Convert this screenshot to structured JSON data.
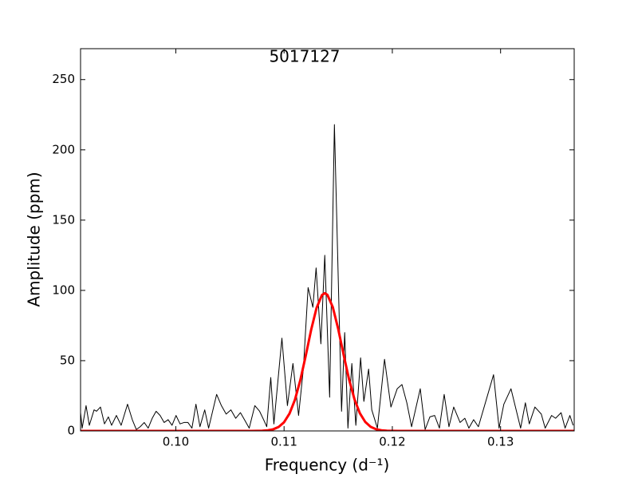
{
  "chart_data": {
    "type": "line",
    "title": "5017127",
    "x_label": "Frequency (d⁻¹)",
    "y_label": "Amplitude (ppm)",
    "xlim": [
      0.0912,
      0.1368
    ],
    "ylim": [
      0,
      272
    ],
    "xticks": [
      {
        "value": 0.1,
        "label": "0.10"
      },
      {
        "value": 0.11,
        "label": "0.11"
      },
      {
        "value": 0.12,
        "label": "0.12"
      },
      {
        "value": 0.13,
        "label": "0.13"
      }
    ],
    "yticks": [
      0,
      50,
      100,
      150,
      200,
      250
    ],
    "grid": false,
    "series": [
      {
        "color": "#000000",
        "x": [
          0.0912,
          0.09135,
          0.09171,
          0.09201,
          0.09245,
          0.09267,
          0.09304,
          0.09341,
          0.09377,
          0.09407,
          0.09451,
          0.09495,
          0.09554,
          0.09598,
          0.09635,
          0.09671,
          0.09708,
          0.09745,
          0.09782,
          0.09818,
          0.09855,
          0.09892,
          0.09929,
          0.09965,
          0.10002,
          0.10039,
          0.10076,
          0.10112,
          0.10149,
          0.10186,
          0.10223,
          0.10267,
          0.10303,
          0.10377,
          0.10421,
          0.10465,
          0.10509,
          0.10553,
          0.10597,
          0.10634,
          0.10678,
          0.1073,
          0.10774,
          0.10811,
          0.1084,
          0.10877,
          0.10906,
          0.1098,
          0.11031,
          0.11082,
          0.11134,
          0.11178,
          0.11222,
          0.11266,
          0.11296,
          0.1134,
          0.11376,
          0.11421,
          0.11465,
          0.11531,
          0.1156,
          0.1159,
          0.11626,
          0.11663,
          0.11707,
          0.11737,
          0.11781,
          0.1181,
          0.11862,
          0.11928,
          0.11987,
          0.12045,
          0.12089,
          0.12134,
          0.12178,
          0.12258,
          0.12303,
          0.12347,
          0.12391,
          0.12435,
          0.12479,
          0.12523,
          0.12567,
          0.12626,
          0.1267,
          0.12707,
          0.12751,
          0.12795,
          0.12935,
          0.12986,
          0.1303,
          0.13096,
          0.13185,
          0.13229,
          0.13265,
          0.13317,
          0.13376,
          0.13412,
          0.13471,
          0.13508,
          0.13559,
          0.13596,
          0.1364,
          0.1367
        ],
        "values": [
          13,
          2,
          18,
          4,
          15,
          14,
          17,
          5,
          10,
          4,
          11,
          4,
          19,
          8,
          1,
          3,
          6,
          2,
          9,
          14,
          11,
          6,
          8,
          4,
          11,
          5,
          6,
          6,
          2,
          19,
          3,
          15,
          2,
          26,
          18,
          12,
          15,
          9,
          13,
          8,
          2,
          18,
          14,
          8,
          3,
          38,
          5,
          66,
          18,
          48,
          11,
          44,
          102,
          88,
          116,
          62,
          125,
          24,
          218,
          14,
          70,
          2,
          48,
          4,
          52,
          21,
          44,
          15,
          2,
          51,
          17,
          30,
          33,
          20,
          3,
          30,
          1,
          10,
          11,
          2,
          26,
          3,
          17,
          6,
          9,
          2,
          8,
          3,
          40,
          2,
          19,
          30,
          2,
          20,
          5,
          17,
          12,
          2,
          11,
          9,
          13,
          2,
          11,
          4
        ]
      },
      {
        "color": "#ff0000",
        "linewidth": 3,
        "x": [
          0.0912,
          0.106,
          0.1065,
          0.107,
          0.1075,
          0.108,
          0.1085,
          0.109,
          0.1095,
          0.11,
          0.1105,
          0.111,
          0.1115,
          0.112,
          0.1125,
          0.113,
          0.1135,
          0.11376,
          0.114,
          0.1145,
          0.115,
          0.1155,
          0.116,
          0.1165,
          0.117,
          0.1175,
          0.118,
          0.1185,
          0.119,
          0.1195,
          0.12,
          0.1205,
          0.121,
          0.1368
        ],
        "values": [
          0,
          0,
          0,
          0.01,
          0.05,
          0.15,
          0.44,
          1.17,
          2.83,
          6.2,
          12.3,
          22.1,
          36.1,
          53.5,
          71.9,
          87.5,
          96.7,
          98,
          96.9,
          88.1,
          72.6,
          54.2,
          36.8,
          22.6,
          12.6,
          6.4,
          2.9,
          1.2,
          0.46,
          0.16,
          0.05,
          0.01,
          0,
          0
        ]
      }
    ]
  }
}
